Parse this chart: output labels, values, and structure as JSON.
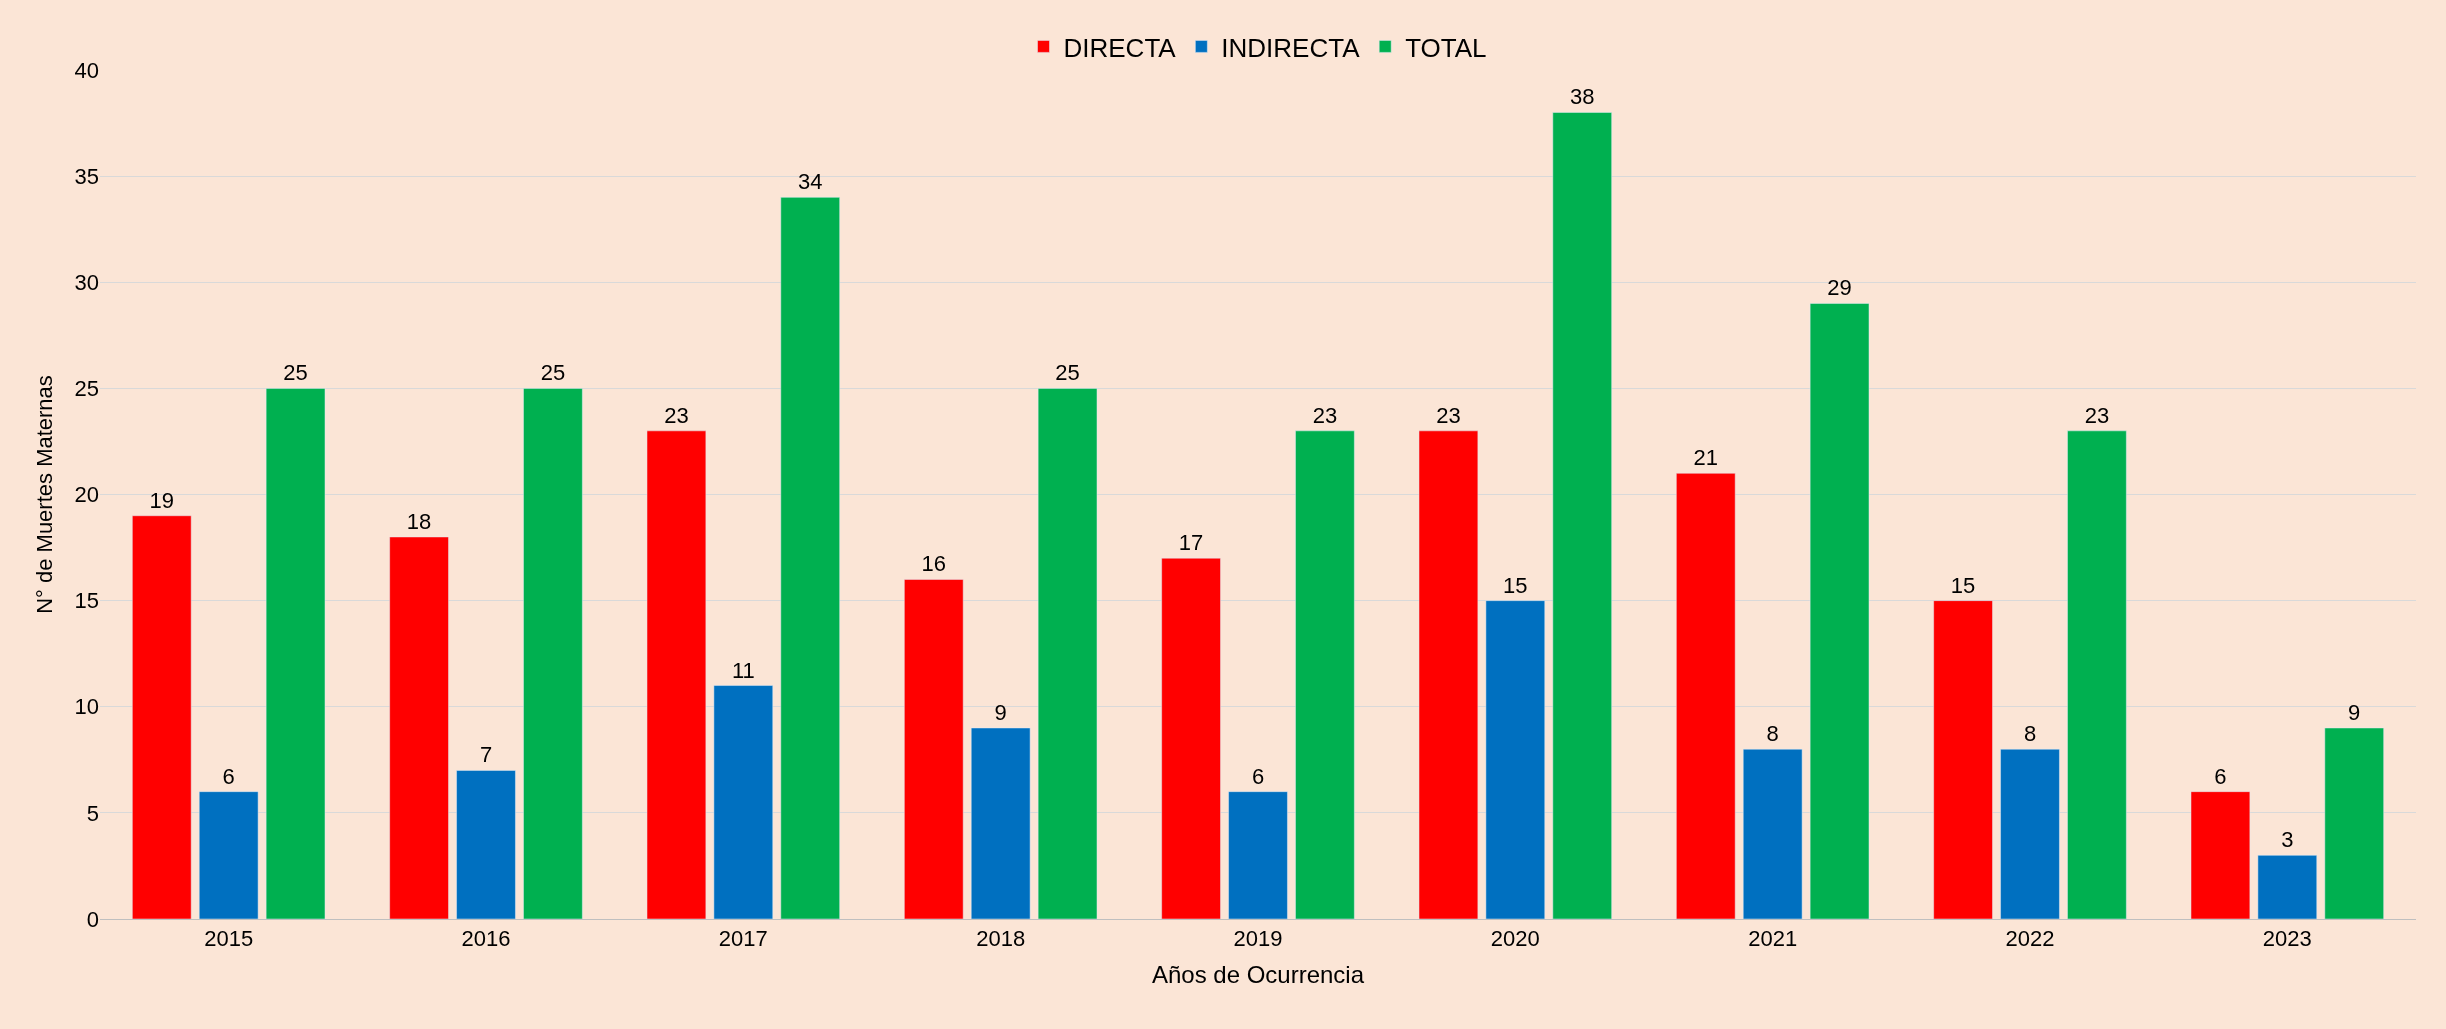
{
  "chart_data": {
    "type": "bar",
    "xlabel": "Años de Ocurrencia",
    "ylabel": "N° de Muertes Maternas",
    "categories": [
      "2015",
      "2016",
      "2017",
      "2018",
      "2019",
      "2020",
      "2021",
      "2022",
      "2023"
    ],
    "series": [
      {
        "name": "DIRECTA",
        "color": "#ff0000",
        "values": [
          19,
          18,
          23,
          16,
          17,
          23,
          21,
          15,
          6
        ]
      },
      {
        "name": "INDIRECTA",
        "color": "#0070c0",
        "values": [
          6,
          7,
          11,
          9,
          6,
          15,
          8,
          8,
          3
        ]
      },
      {
        "name": "TOTAL",
        "color": "#00b050",
        "values": [
          25,
          25,
          34,
          25,
          23,
          38,
          29,
          23,
          9
        ]
      }
    ],
    "ylim": [
      0,
      40
    ],
    "yticks": [
      0,
      5,
      10,
      15,
      20,
      25,
      30,
      35,
      40
    ],
    "grid": "y",
    "legend": "top",
    "data_labels": true
  }
}
